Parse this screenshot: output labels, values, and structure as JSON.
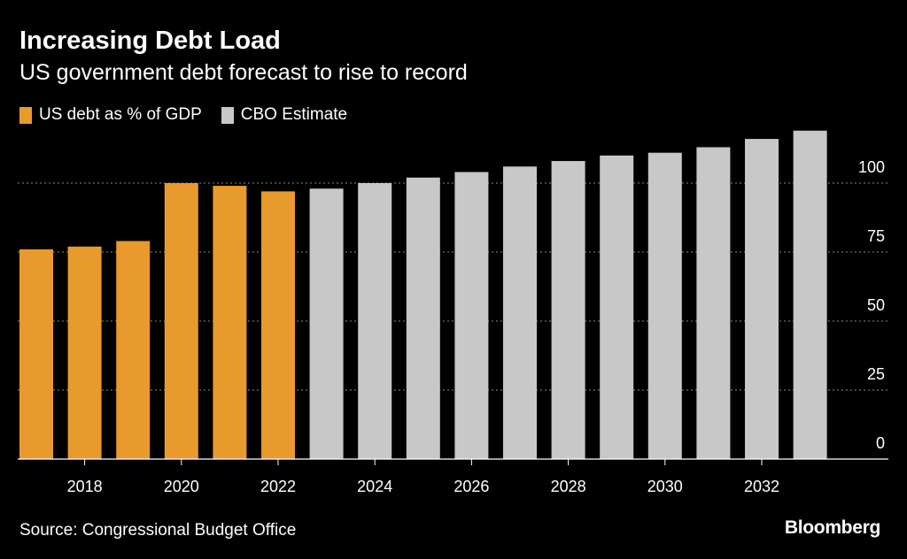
{
  "chart_data": {
    "type": "bar",
    "title": "Increasing Debt Load",
    "subtitle": "US government debt forecast to rise to record",
    "source": "Source: Congressional Budget Office",
    "brand": "Bloomberg",
    "legend": [
      {
        "label": "US debt as % of GDP",
        "color": "#e89a2c"
      },
      {
        "label": "CBO Estimate",
        "color": "#c8c8c8"
      }
    ],
    "categories": [
      2017,
      2018,
      2019,
      2020,
      2021,
      2022,
      2023,
      2024,
      2025,
      2026,
      2027,
      2028,
      2029,
      2030,
      2031,
      2032,
      2033
    ],
    "series": [
      {
        "name": "US debt as % of GDP",
        "color": "#e89a2c",
        "values": [
          76,
          77,
          79,
          100,
          99,
          97,
          null,
          null,
          null,
          null,
          null,
          null,
          null,
          null,
          null,
          null,
          null
        ]
      },
      {
        "name": "CBO Estimate",
        "color": "#c8c8c8",
        "values": [
          null,
          null,
          null,
          null,
          null,
          null,
          98,
          100,
          102,
          104,
          106,
          108,
          110,
          111,
          113,
          116,
          119
        ]
      }
    ],
    "x_tick_labels": [
      "2018",
      "2020",
      "2022",
      "2024",
      "2026",
      "2028",
      "2030",
      "2032"
    ],
    "x_tick_values": [
      2018,
      2020,
      2022,
      2024,
      2026,
      2028,
      2030,
      2032
    ],
    "y_ticks": [
      0,
      25,
      50,
      75,
      100
    ],
    "ylim": [
      0,
      119
    ],
    "xlabel": "",
    "ylabel": "",
    "grid": true
  }
}
